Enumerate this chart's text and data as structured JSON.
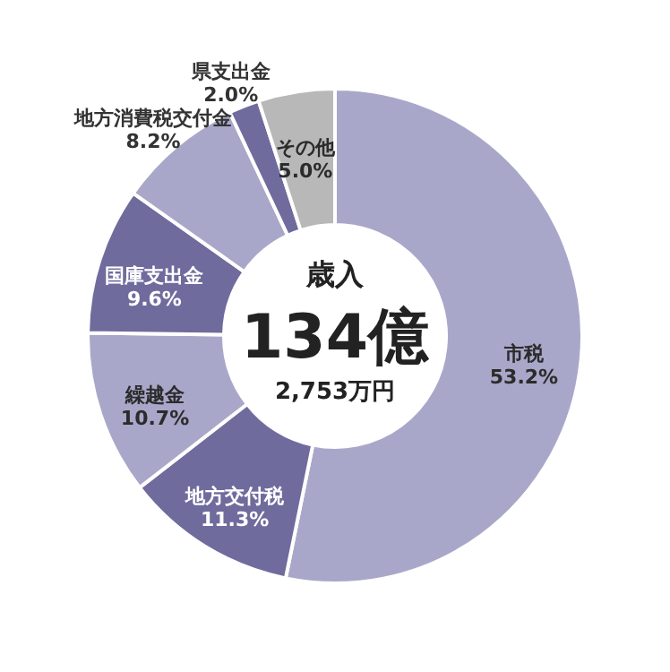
{
  "chart_data": {
    "type": "donut",
    "categories": [
      "市税",
      "地方交付税",
      "繰越金",
      "国庫支出金",
      "地方消費税交付金",
      "県支出金",
      "その他"
    ],
    "values": [
      53.2,
      11.3,
      10.7,
      9.6,
      8.2,
      2.0,
      5.0
    ],
    "value_labels": [
      "53.2%",
      "11.3%",
      "10.7%",
      "9.6%",
      "8.2%",
      "2.0%",
      "5.0%"
    ],
    "colors": [
      "#a9a7c9",
      "#6f6b9d",
      "#a9a7c9",
      "#6f6b9d",
      "#a9a7c9",
      "#6f6b9d",
      "#b8b8b8"
    ],
    "annotations": [
      "歳入",
      "134億",
      "2,753万円"
    ],
    "legend": false
  }
}
